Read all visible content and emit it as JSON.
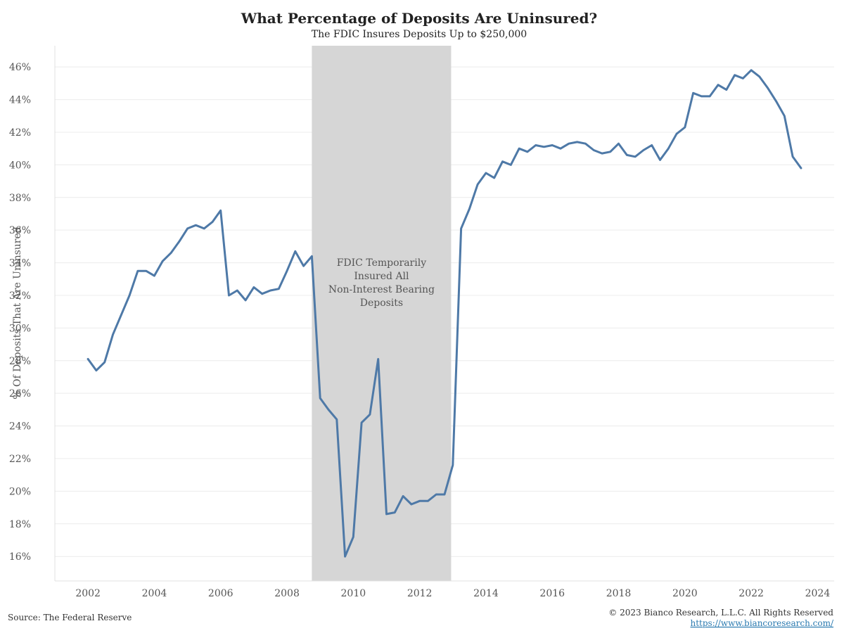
{
  "colors": {
    "line": "#4e79a7",
    "shade": "#d6d6d6",
    "grid": "#ececec",
    "link": "#2a7ab0"
  },
  "chart_data": {
    "type": "line",
    "title": "What Percentage of Deposits Are Uninsured?",
    "subtitle": "The FDIC Insures Deposits Up to $250,000",
    "ylabel": "% Of Deposits That Are Uninsured",
    "xlabel": "",
    "xlim": [
      2001.0,
      2024.5
    ],
    "ylim": [
      14.5,
      47.3
    ],
    "x_ticks": [
      2002,
      2004,
      2006,
      2008,
      2010,
      2012,
      2014,
      2016,
      2018,
      2020,
      2022,
      2024
    ],
    "y_ticks": [
      16,
      18,
      20,
      22,
      24,
      26,
      28,
      30,
      32,
      34,
      36,
      38,
      40,
      42,
      44,
      46
    ],
    "y_tick_labels": [
      "16%",
      "18%",
      "20%",
      "22%",
      "24%",
      "26%",
      "28%",
      "30%",
      "32%",
      "34%",
      "36%",
      "38%",
      "40%",
      "42%",
      "44%",
      "46%"
    ],
    "x_tick_labels": [
      "2002",
      "2004",
      "2006",
      "2008",
      "2010",
      "2012",
      "2014",
      "2016",
      "2018",
      "2020",
      "2022",
      "2024"
    ],
    "grid": "horizontal",
    "shaded_region": {
      "start": 2008.75,
      "end": 2012.95,
      "annotation": [
        "FDIC Temporarily",
        "Insured All",
        "Non-Interest Bearing",
        "Deposits"
      ]
    },
    "series": [
      {
        "x": [
          2002.0,
          2002.25,
          2002.5,
          2002.75,
          2003.0,
          2003.25,
          2003.5,
          2003.75,
          2004.0,
          2004.25,
          2004.5,
          2004.75,
          2005.0,
          2005.25,
          2005.5,
          2005.75,
          2006.0,
          2006.25,
          2006.5,
          2006.75,
          2007.0,
          2007.25,
          2007.5,
          2007.75,
          2008.0,
          2008.25,
          2008.5,
          2008.75,
          2009.0,
          2009.25,
          2009.5,
          2009.75,
          2010.0,
          2010.25,
          2010.5,
          2010.75,
          2011.0,
          2011.25,
          2011.5,
          2011.75,
          2012.0,
          2012.25,
          2012.5,
          2012.75,
          2013.0,
          2013.25,
          2013.5,
          2013.75,
          2014.0,
          2014.25,
          2014.5,
          2014.75,
          2015.0,
          2015.25,
          2015.5,
          2015.75,
          2016.0,
          2016.25,
          2016.5,
          2016.75,
          2017.0,
          2017.25,
          2017.5,
          2017.75,
          2018.0,
          2018.25,
          2018.5,
          2018.75,
          2019.0,
          2019.25,
          2019.5,
          2019.75,
          2020.0,
          2020.25,
          2020.5,
          2020.75,
          2021.0,
          2021.25,
          2021.5,
          2021.75,
          2022.0,
          2022.25,
          2022.5,
          2022.75,
          2023.0,
          2023.25,
          2023.5
        ],
        "values": [
          28.1,
          27.4,
          27.9,
          29.6,
          30.8,
          32.0,
          33.5,
          33.5,
          33.2,
          34.1,
          34.6,
          35.3,
          36.1,
          36.3,
          36.1,
          36.5,
          37.2,
          32.0,
          32.3,
          31.7,
          32.5,
          32.1,
          32.3,
          32.4,
          33.5,
          34.7,
          33.8,
          34.4,
          25.7,
          25.0,
          24.4,
          16.0,
          17.2,
          24.2,
          24.7,
          28.1,
          18.6,
          18.7,
          19.7,
          19.2,
          19.4,
          19.4,
          19.8,
          19.8,
          21.6,
          36.1,
          37.3,
          38.8,
          39.5,
          39.2,
          40.2,
          40.0,
          41.0,
          40.8,
          41.2,
          41.1,
          41.2,
          41.0,
          41.3,
          41.4,
          41.3,
          40.9,
          40.7,
          40.8,
          41.3,
          40.6,
          40.5,
          40.9,
          41.2,
          40.3,
          41.0,
          41.9,
          42.3,
          44.4,
          44.2,
          44.2,
          44.9,
          44.6,
          45.5,
          45.3,
          45.8,
          45.4,
          44.7,
          43.9,
          43.0,
          40.5,
          39.8
        ]
      }
    ]
  },
  "footer": {
    "source": "Source: The Federal Reserve",
    "copyright": "© 2023 Bianco Research, L.L.C. All Rights Reserved",
    "url": "https://www.biancoresearch.com/"
  }
}
